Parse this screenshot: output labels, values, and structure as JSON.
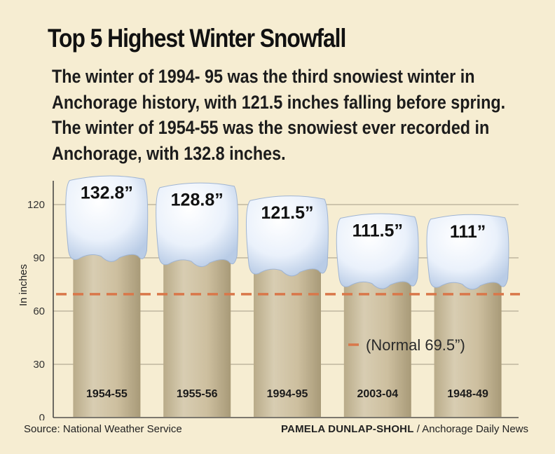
{
  "header": {
    "title": "Top 5 Highest Winter Snowfall",
    "subtitle": "The winter of 1994- 95 was the third snowiest winter in Anchorage history, with 121.5 inches falling before spring. The winter of 1954-55 was the snowiest ever recorded in Anchorage, with 132.8 inches."
  },
  "footer": {
    "source": "Source: National Weather Service",
    "credit_name": "PAMELA DUNLAP-SHOHL",
    "credit_org": " / Anchorage Daily News"
  },
  "colors": {
    "background": "#f6edd2",
    "bar": "#cbbd9d",
    "snow": "#e3edfa",
    "reference_line": "#d9774a",
    "grid": "#b5ab95"
  },
  "chart_data": {
    "type": "bar",
    "categories": [
      "1954-55",
      "1955-56",
      "1994-95",
      "2003-04",
      "1948-49"
    ],
    "values": [
      132.8,
      128.8,
      121.5,
      111.5,
      111
    ],
    "value_labels": [
      "132.8”",
      "128.8”",
      "121.5”",
      "111.5”",
      "111”"
    ],
    "ylabel": "In inches",
    "yticks": [
      0,
      30,
      60,
      90,
      120
    ],
    "ylim": [
      0,
      135
    ],
    "grid": true,
    "reference": {
      "value": 69.5,
      "label": "(Normal 69.5”)"
    }
  }
}
